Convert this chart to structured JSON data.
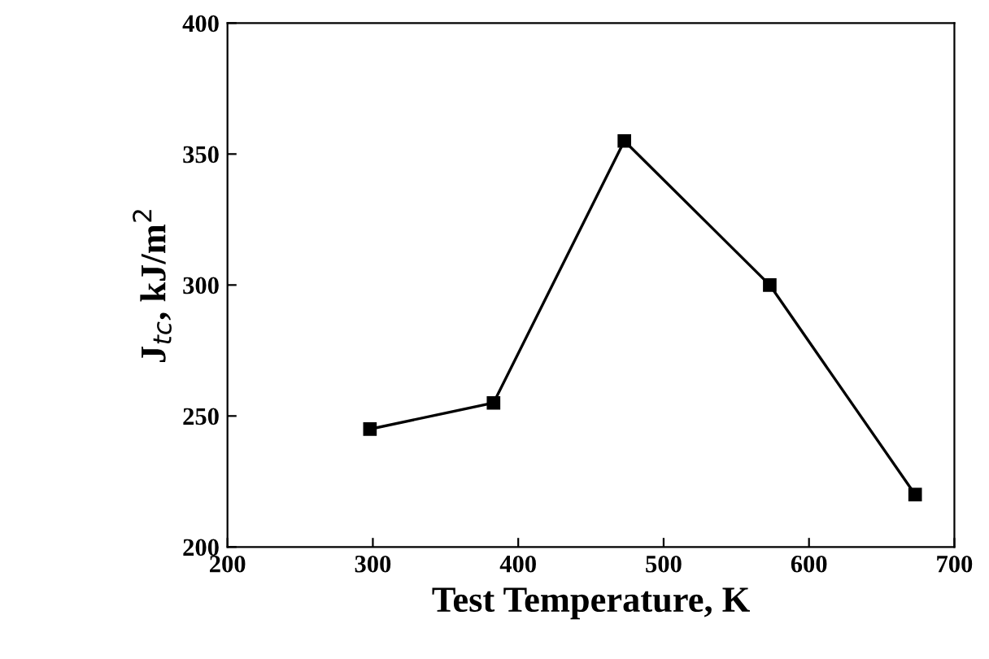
{
  "chart_data": {
    "type": "line",
    "xlabel": "Test Temperature, K",
    "ylabel": "J$_{tc}$, kJ/m$^{2}$",
    "x": [
      298,
      383,
      473,
      573,
      673
    ],
    "series": [
      {
        "color": "#000000",
        "values": [
          245,
          255,
          355,
          300,
          220
        ]
      }
    ],
    "xlim": [
      200,
      700
    ],
    "xticks": [
      200,
      300,
      400,
      500,
      600,
      700
    ],
    "ylim": [
      200,
      400
    ],
    "yticks": [
      200,
      250,
      300,
      350,
      400
    ],
    "marker": "square",
    "line_style": "solid",
    "grid": false,
    "legend": false
  }
}
